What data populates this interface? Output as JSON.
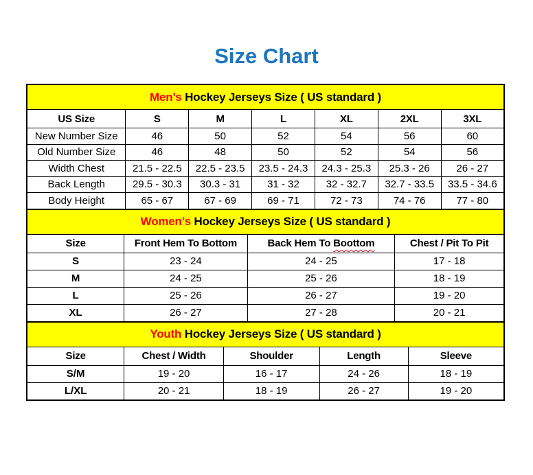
{
  "page": {
    "title": "Size Chart",
    "title_color": "#1C75BF",
    "accent_red": "#FF0000",
    "banner_yellow": "#FFFF00"
  },
  "tables": [
    {
      "id": "mens",
      "banner": {
        "highlight": "Men’s",
        "rest": " Hockey Jerseys Size ( US standard )"
      },
      "columns": [
        {
          "label": "US Size"
        },
        {
          "label": "S"
        },
        {
          "label": "M"
        },
        {
          "label": "L"
        },
        {
          "label": "XL"
        },
        {
          "label": "2XL"
        },
        {
          "label": "3XL"
        }
      ],
      "rows": [
        {
          "label": "New Number Size",
          "values": [
            "46",
            "50",
            "52",
            "54",
            "56",
            "60"
          ]
        },
        {
          "label": "Old Number Size",
          "values": [
            "46",
            "48",
            "50",
            "52",
            "54",
            "56"
          ]
        },
        {
          "label": "Width Chest",
          "values": [
            "21.5 - 22.5",
            "22.5 - 23.5",
            "23.5 - 24.3",
            "24.3 - 25.3",
            "25.3 - 26",
            "26 - 27"
          ]
        },
        {
          "label": "Back Length",
          "values": [
            "29.5 - 30.3",
            "30.3 - 31",
            "31 - 32",
            "32 - 32.7",
            "32.7 - 33.5",
            "33.5 - 34.6"
          ]
        },
        {
          "label": "Body Height",
          "values": [
            "65 - 67",
            "67 - 69",
            "69 - 71",
            "72 - 73",
            "74 - 76",
            "77 - 80"
          ]
        }
      ]
    },
    {
      "id": "womens",
      "banner": {
        "highlight": "Women’s",
        "rest": " Hockey Jerseys Size ( US standard )"
      },
      "columns": [
        {
          "label": "Size"
        },
        {
          "label": "Front Hem To Bottom"
        },
        {
          "label": "Back Hem To Boottom",
          "wavy_word": "Boottom"
        },
        {
          "label": "Chest / Pit To Pit"
        }
      ],
      "rows": [
        {
          "label": "S",
          "values": [
            "23 - 24",
            "24 - 25",
            "17 - 18"
          ]
        },
        {
          "label": "M",
          "values": [
            "24 - 25",
            "25 - 26",
            "18 - 19"
          ]
        },
        {
          "label": "L",
          "values": [
            "25 - 26",
            "26 - 27",
            "19 - 20"
          ]
        },
        {
          "label": "XL",
          "values": [
            "26 - 27",
            "27 - 28",
            "20 - 21"
          ]
        }
      ]
    },
    {
      "id": "youth",
      "banner": {
        "highlight": "Youth",
        "rest": " Hockey Jerseys Size ( US standard )"
      },
      "columns": [
        {
          "label": "Size"
        },
        {
          "label": "Chest / Width"
        },
        {
          "label": "Shoulder"
        },
        {
          "label": "Length"
        },
        {
          "label": "Sleeve"
        }
      ],
      "rows": [
        {
          "label": "S/M",
          "values": [
            "19 - 20",
            "16 - 17",
            "24 - 26",
            "18 - 19"
          ]
        },
        {
          "label": "L/XL",
          "values": [
            "20 - 21",
            "18 - 19",
            "26 - 27",
            "19 - 20"
          ]
        }
      ]
    }
  ]
}
